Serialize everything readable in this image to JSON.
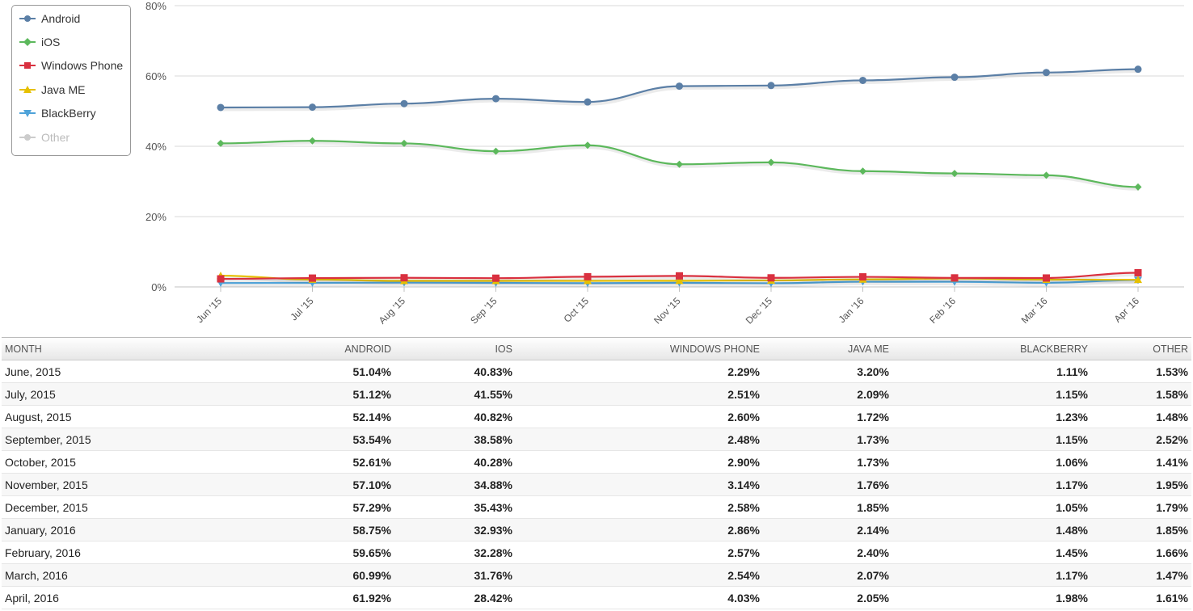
{
  "chart_data": {
    "type": "line",
    "categories": [
      "Jun '15",
      "Jul '15",
      "Aug '15",
      "Sep '15",
      "Oct '15",
      "Nov '15",
      "Dec '15",
      "Jan '16",
      "Feb '16",
      "Mar '16",
      "Apr '16"
    ],
    "series": [
      {
        "name": "Android",
        "color": "#5b7fa6",
        "marker": "circle",
        "values": [
          51.04,
          51.12,
          52.14,
          53.54,
          52.61,
          57.1,
          57.29,
          58.75,
          59.65,
          60.99,
          61.92
        ]
      },
      {
        "name": "iOS",
        "color": "#5cb85c",
        "marker": "diamond",
        "values": [
          40.83,
          41.55,
          40.82,
          38.58,
          40.28,
          34.88,
          35.43,
          32.93,
          32.28,
          31.76,
          28.42
        ]
      },
      {
        "name": "Windows Phone",
        "color": "#d9303f",
        "marker": "square",
        "values": [
          2.29,
          2.51,
          2.6,
          2.48,
          2.9,
          3.14,
          2.58,
          2.86,
          2.57,
          2.54,
          4.03
        ]
      },
      {
        "name": "Java ME",
        "color": "#e6c000",
        "marker": "triangle-up",
        "values": [
          3.2,
          2.09,
          1.72,
          1.73,
          1.73,
          1.76,
          1.85,
          2.14,
          2.4,
          2.07,
          2.05
        ]
      },
      {
        "name": "BlackBerry",
        "color": "#4fa3d9",
        "marker": "triangle-down",
        "values": [
          1.11,
          1.15,
          1.23,
          1.15,
          1.06,
          1.17,
          1.05,
          1.48,
          1.45,
          1.17,
          1.98
        ]
      },
      {
        "name": "Other",
        "color": "#cccccc",
        "marker": "circle",
        "hidden": true,
        "values": [
          1.53,
          1.58,
          1.48,
          2.52,
          1.41,
          1.95,
          1.79,
          1.85,
          1.66,
          1.47,
          1.61
        ]
      }
    ],
    "yticks": [
      "0%",
      "20%",
      "40%",
      "60%",
      "80%"
    ],
    "ylim": [
      0,
      80
    ],
    "grid": true,
    "legend_position": "top-left"
  },
  "table": {
    "headers": [
      "Month",
      "Android",
      "iOS",
      "Windows Phone",
      "Java ME",
      "BlackBerry",
      "Other"
    ],
    "rows": [
      [
        "June, 2015",
        "51.04%",
        "40.83%",
        "2.29%",
        "3.20%",
        "1.11%",
        "1.53%"
      ],
      [
        "July, 2015",
        "51.12%",
        "41.55%",
        "2.51%",
        "2.09%",
        "1.15%",
        "1.58%"
      ],
      [
        "August, 2015",
        "52.14%",
        "40.82%",
        "2.60%",
        "1.72%",
        "1.23%",
        "1.48%"
      ],
      [
        "September, 2015",
        "53.54%",
        "38.58%",
        "2.48%",
        "1.73%",
        "1.15%",
        "2.52%"
      ],
      [
        "October, 2015",
        "52.61%",
        "40.28%",
        "2.90%",
        "1.73%",
        "1.06%",
        "1.41%"
      ],
      [
        "November, 2015",
        "57.10%",
        "34.88%",
        "3.14%",
        "1.76%",
        "1.17%",
        "1.95%"
      ],
      [
        "December, 2015",
        "57.29%",
        "35.43%",
        "2.58%",
        "1.85%",
        "1.05%",
        "1.79%"
      ],
      [
        "January, 2016",
        "58.75%",
        "32.93%",
        "2.86%",
        "2.14%",
        "1.48%",
        "1.85%"
      ],
      [
        "February, 2016",
        "59.65%",
        "32.28%",
        "2.57%",
        "2.40%",
        "1.45%",
        "1.66%"
      ],
      [
        "March, 2016",
        "60.99%",
        "31.76%",
        "2.54%",
        "2.07%",
        "1.17%",
        "1.47%"
      ],
      [
        "April, 2016",
        "61.92%",
        "28.42%",
        "4.03%",
        "2.05%",
        "1.98%",
        "1.61%"
      ]
    ]
  }
}
